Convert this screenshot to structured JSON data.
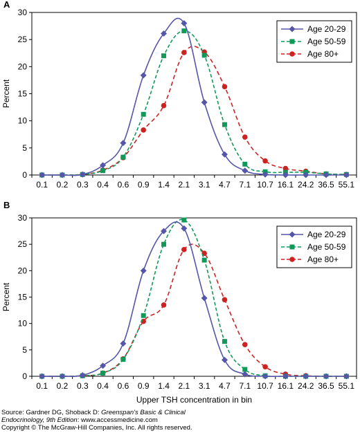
{
  "chart_data": [
    {
      "type": "line",
      "panel_label": "A",
      "ylabel": "Percent",
      "xlabel": "",
      "ylim": [
        0,
        30
      ],
      "yticks": [
        0,
        5,
        10,
        15,
        20,
        25,
        30
      ],
      "categories": [
        "0.1",
        "0.2",
        "0.3",
        "0.4",
        "0.6",
        "0.9",
        "1.4",
        "2.1",
        "3.1",
        "4.7",
        "7.1",
        "10.7",
        "16.1",
        "24.2",
        "36.5",
        "55.1"
      ],
      "legend_position": "top-right",
      "series": [
        {
          "name": "Age 20-29",
          "color": "#5555aa",
          "marker": "diamond",
          "dash": "solid",
          "values": [
            0.0,
            0.0,
            0.1,
            1.8,
            5.9,
            18.4,
            26.1,
            28.0,
            13.4,
            3.8,
            0.8,
            0.1,
            0.0,
            0.0,
            0.0,
            0.0
          ]
        },
        {
          "name": "Age 50-59",
          "color": "#11995a",
          "marker": "square",
          "dash": "dashed",
          "values": [
            0.0,
            0.0,
            0.1,
            0.8,
            3.3,
            11.2,
            22.0,
            26.6,
            22.1,
            9.3,
            2.0,
            0.6,
            0.5,
            0.5,
            0.2,
            0.1
          ]
        },
        {
          "name": "Age 80+",
          "color": "#cc2222",
          "marker": "circle",
          "dash": "dashed",
          "values": [
            0.0,
            0.0,
            0.1,
            0.9,
            3.2,
            8.3,
            12.8,
            22.6,
            22.7,
            16.3,
            7.0,
            2.6,
            1.2,
            0.7,
            0.2,
            0.1
          ]
        }
      ]
    },
    {
      "type": "line",
      "panel_label": "B",
      "ylabel": "Percent",
      "xlabel": "Upper TSH concentration in bin",
      "ylim": [
        0,
        30
      ],
      "yticks": [
        0,
        5,
        10,
        15,
        20,
        25,
        30
      ],
      "categories": [
        "0.1",
        "0.2",
        "0.3",
        "0.4",
        "0.6",
        "0.9",
        "1.4",
        "2.1",
        "3.1",
        "4.7",
        "7.1",
        "10.7",
        "16.1",
        "24.2",
        "36.5",
        "55.1"
      ],
      "legend_position": "top-right",
      "series": [
        {
          "name": "Age 20-29",
          "color": "#5555aa",
          "marker": "diamond",
          "dash": "solid",
          "values": [
            0.0,
            0.0,
            0.2,
            2.0,
            6.2,
            20.0,
            27.5,
            28.0,
            14.8,
            3.1,
            0.4,
            0.0,
            0.0,
            0.0,
            0.0,
            0.0
          ]
        },
        {
          "name": "Age 50-59",
          "color": "#11995a",
          "marker": "square",
          "dash": "dashed",
          "values": [
            0.0,
            0.0,
            0.1,
            0.6,
            3.2,
            11.5,
            25.0,
            29.6,
            22.0,
            6.6,
            1.3,
            0.1,
            0.0,
            0.0,
            0.0,
            0.0
          ]
        },
        {
          "name": "Age 80+",
          "color": "#cc2222",
          "marker": "circle",
          "dash": "dashed",
          "values": [
            0.0,
            0.0,
            0.1,
            0.6,
            3.3,
            10.4,
            13.5,
            24.0,
            23.3,
            14.5,
            6.0,
            1.8,
            0.4,
            0.1,
            0.0,
            0.0
          ]
        }
      ]
    }
  ],
  "credits": {
    "line1_prefix": "Source: Gardner DG, Shoback D: ",
    "line1_title": "Greenspan's Basic & Clinical",
    "line2_title": "Endocrinology, 9th Edition",
    "line2_suffix": ": www.accessmedicine.com",
    "line3": "Copyright © The McGraw-Hill Companies, Inc. All rights reserved."
  }
}
